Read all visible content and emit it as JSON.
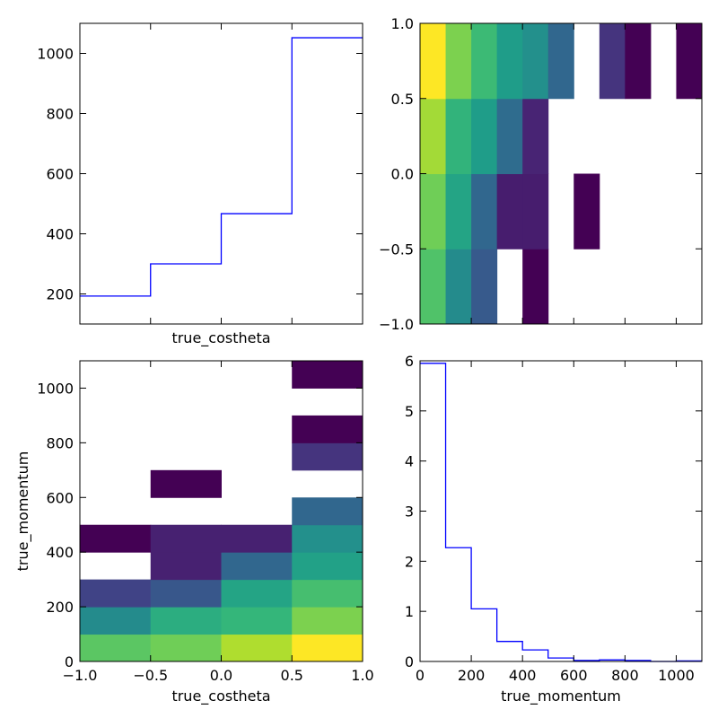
{
  "chart_data": [
    {
      "id": "costheta-profile",
      "type": "line",
      "style": "step",
      "xlabel": "true_costheta",
      "ylabel": "",
      "xlim": [
        -1.0,
        1.0
      ],
      "ylim": [
        100,
        1100
      ],
      "xticks_labeled": false,
      "yticks": [
        200,
        400,
        600,
        800,
        1000
      ],
      "bin_edges": [
        -1.0,
        -0.5,
        0.0,
        0.5,
        1.0
      ],
      "values": [
        193,
        300,
        467,
        1052
      ],
      "line_color": "#0000ff"
    },
    {
      "id": "top-right-2d",
      "type": "heatmap",
      "xlabel": "",
      "ylabel": "",
      "xlim": [
        0,
        1100
      ],
      "ylim": [
        -1.0,
        1.0
      ],
      "xticks_labeled": false,
      "yticks": [
        -1.0,
        -0.5,
        0.0,
        0.5,
        1.0
      ],
      "ytick_labels": [
        "−1.0",
        "−0.5",
        "0.0",
        "0.5",
        "1.0"
      ],
      "x_edges": [
        0,
        100,
        200,
        300,
        400,
        500,
        600,
        700,
        800,
        900,
        1000,
        1100
      ],
      "y_edges": [
        -1.0,
        -0.5,
        0.0,
        0.5,
        1.0
      ],
      "colormap": "viridis",
      "vmin": 0.0,
      "vmax": 1.0,
      "cells": [
        [
          0.72,
          0.48,
          0.28,
          null,
          0.0,
          null,
          null,
          null,
          null,
          null,
          null
        ],
        [
          0.78,
          0.58,
          0.33,
          0.08,
          0.08,
          null,
          0.0,
          null,
          null,
          null,
          null
        ],
        [
          0.86,
          0.65,
          0.55,
          0.35,
          0.1,
          null,
          null,
          null,
          null,
          null,
          null
        ],
        [
          1.0,
          0.8,
          0.68,
          0.55,
          0.5,
          0.33,
          null,
          0.15,
          0.0,
          null,
          0.0
        ]
      ]
    },
    {
      "id": "momentum-vs-costheta",
      "type": "heatmap",
      "xlabel": "true_costheta",
      "ylabel": "true_momentum",
      "xlim": [
        -1.0,
        1.0
      ],
      "ylim": [
        0,
        1100
      ],
      "xticks": [
        -1.0,
        -0.5,
        0.0,
        0.5,
        1.0
      ],
      "xtick_labels": [
        "−1.0",
        "−0.5",
        "0.0",
        "0.5",
        "1.0"
      ],
      "yticks": [
        0,
        200,
        400,
        600,
        800,
        1000
      ],
      "x_edges": [
        -1.0,
        -0.5,
        0.0,
        0.5,
        1.0
      ],
      "y_edges": [
        0,
        100,
        200,
        300,
        400,
        500,
        600,
        700,
        800,
        900,
        1000,
        1100
      ],
      "colormap": "viridis",
      "vmin": 0.0,
      "vmax": 1.0,
      "cells": [
        [
          0.74,
          0.78,
          0.88,
          1.0
        ],
        [
          0.48,
          0.62,
          0.66,
          0.8
        ],
        [
          0.2,
          0.27,
          0.58,
          0.7
        ],
        [
          null,
          0.09,
          0.33,
          0.57
        ],
        [
          0.0,
          0.09,
          0.09,
          0.5
        ],
        [
          null,
          null,
          null,
          0.33
        ],
        [
          null,
          0.0,
          null,
          null
        ],
        [
          null,
          null,
          null,
          0.15
        ],
        [
          null,
          null,
          null,
          0.0
        ],
        [
          null,
          null,
          null,
          null
        ],
        [
          null,
          null,
          null,
          0.0
        ]
      ]
    },
    {
      "id": "momentum-distribution",
      "type": "line",
      "style": "step",
      "xlabel": "true_momentum",
      "ylabel": "",
      "xlim": [
        0,
        1100
      ],
      "ylim": [
        0,
        6
      ],
      "xticks": [
        0,
        200,
        400,
        600,
        800,
        1000
      ],
      "yticks": [
        0,
        1,
        2,
        3,
        4,
        5,
        6
      ],
      "bin_edges": [
        0,
        100,
        200,
        300,
        400,
        500,
        600,
        700,
        800,
        900,
        1000,
        1100
      ],
      "values": [
        5.95,
        2.27,
        1.05,
        0.4,
        0.23,
        0.07,
        0.02,
        0.03,
        0.02,
        0.0,
        0.01
      ],
      "line_color": "#0000ff"
    }
  ]
}
